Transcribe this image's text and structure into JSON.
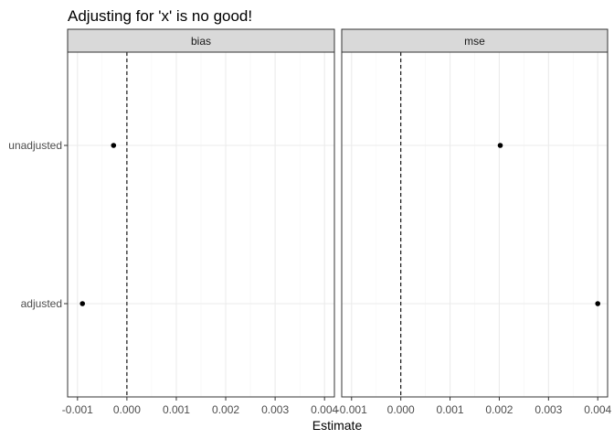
{
  "chart_data": {
    "type": "scatter",
    "title": "Adjusting for 'x' is no good!",
    "xlabel": "Estimate",
    "ylabel": "",
    "xlim": [
      -0.0012,
      0.0042
    ],
    "x_ticks": [
      -0.001,
      0.0,
      0.001,
      0.002,
      0.003,
      0.004
    ],
    "x_tick_labels": [
      "-0.001",
      "0.000",
      "0.001",
      "0.002",
      "0.003",
      "0.004"
    ],
    "categories": [
      "unadjusted",
      "adjusted"
    ],
    "reference_line": {
      "x": 0,
      "style": "dashed"
    },
    "grid": true,
    "facets": [
      {
        "label": "bias",
        "points": [
          {
            "category": "unadjusted",
            "x": -0.00027
          },
          {
            "category": "adjusted",
            "x": -0.0009
          }
        ]
      },
      {
        "label": "mse",
        "points": [
          {
            "category": "unadjusted",
            "x": 0.00202
          },
          {
            "category": "adjusted",
            "x": 0.004
          }
        ]
      }
    ],
    "colors": {
      "strip_fill": "#d9d9d9",
      "panel_border": "#333333",
      "grid_major": "#ebebeb",
      "grid_minor": "#f5f5f5",
      "point": "#000000"
    }
  }
}
